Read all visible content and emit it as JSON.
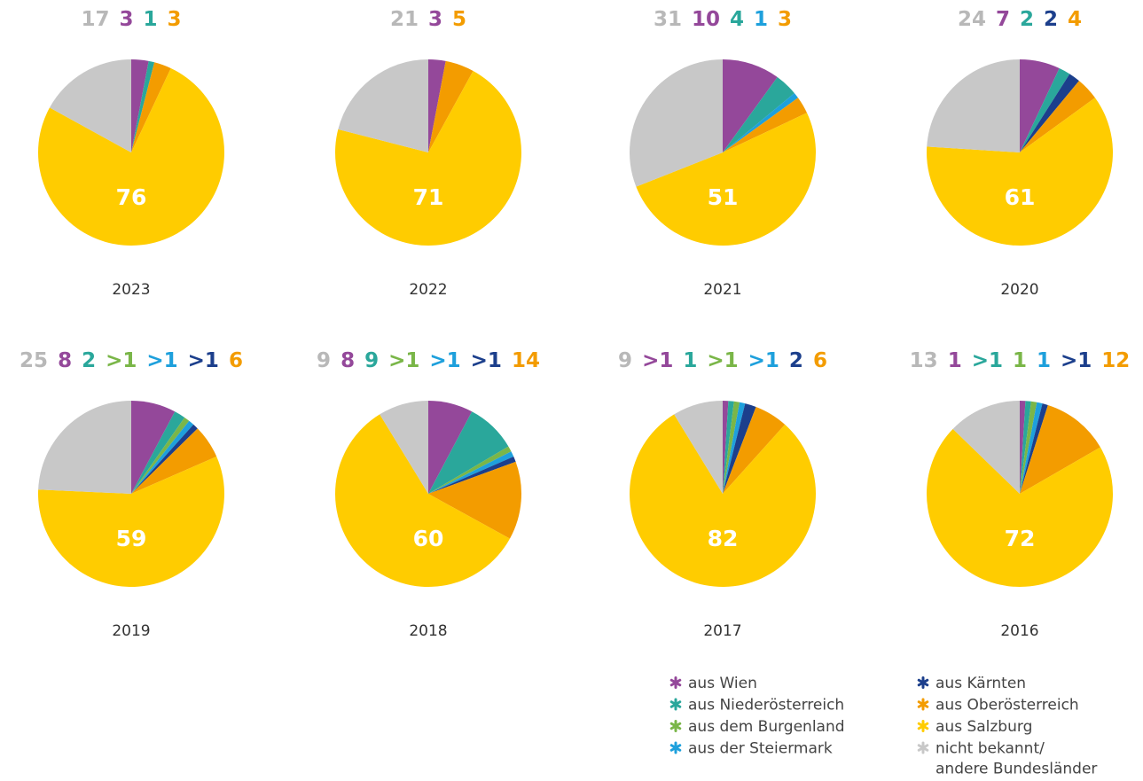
{
  "legend": {
    "categories": [
      "aus Wien",
      "aus Niederösterreich",
      "aus dem Burgenland",
      "aus der Steiermark",
      "aus Kärnten",
      "aus Oberösterreich",
      "aus Salzburg",
      "nicht bekannt/\nandere Bundesländer"
    ],
    "colors": [
      "#94489a",
      "#2aa79b",
      "#7ab648",
      "#1ea0dc",
      "#1c3f8c",
      "#f39c00",
      "#ffcc00",
      "#c8c8c8"
    ]
  },
  "chart_data": [
    {
      "type": "pie",
      "title": "2023",
      "values": [
        3,
        1,
        null,
        null,
        null,
        3,
        76,
        17
      ],
      "value_labels": [
        "3",
        "1",
        null,
        null,
        null,
        "3",
        "76",
        "17"
      ]
    },
    {
      "type": "pie",
      "title": "2022",
      "values": [
        3,
        null,
        null,
        null,
        null,
        5,
        71,
        21
      ],
      "value_labels": [
        "3",
        null,
        null,
        null,
        null,
        "5",
        "71",
        "21"
      ]
    },
    {
      "type": "pie",
      "title": "2021",
      "values": [
        10,
        4,
        null,
        1,
        null,
        3,
        51,
        31
      ],
      "value_labels": [
        "10",
        "4",
        null,
        "1",
        null,
        "3",
        "51",
        "31"
      ]
    },
    {
      "type": "pie",
      "title": "2020",
      "values": [
        7,
        2,
        null,
        null,
        2,
        4,
        61,
        24
      ],
      "value_labels": [
        "7",
        "2",
        null,
        null,
        "2",
        "4",
        "61",
        "24"
      ]
    },
    {
      "type": "pie",
      "title": "2019",
      "values": [
        8,
        2,
        1,
        1,
        1,
        6,
        59,
        25
      ],
      "value_labels": [
        "8",
        "2",
        ">1",
        ">1",
        ">1",
        "6",
        "59",
        "25"
      ]
    },
    {
      "type": "pie",
      "title": "2018",
      "values": [
        8,
        9,
        1,
        1,
        1,
        14,
        60,
        9
      ],
      "value_labels": [
        "8",
        "9",
        ">1",
        ">1",
        ">1",
        "14",
        "60",
        "9"
      ]
    },
    {
      "type": "pie",
      "title": "2017",
      "values": [
        1,
        1,
        1,
        1,
        2,
        6,
        82,
        9
      ],
      "value_labels": [
        ">1",
        "1",
        ">1",
        ">1",
        "2",
        "6",
        "82",
        "9"
      ]
    },
    {
      "type": "pie",
      "title": "2016",
      "values": [
        1,
        1,
        1,
        1,
        1,
        12,
        72,
        13
      ],
      "value_labels": [
        "1",
        ">1",
        "1",
        "1",
        ">1",
        "12",
        "72",
        "13"
      ]
    }
  ]
}
